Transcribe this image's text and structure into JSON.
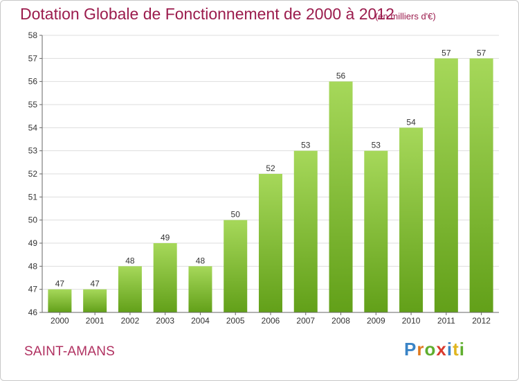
{
  "title": "Dotation Globale de Fonctionnement de 2000 à 2012",
  "subtitle": "(en milliers d'€)",
  "location": "SAINT-AMANS",
  "logo": "Proxiti",
  "colors": {
    "bar_light": "#a6d85a",
    "bar_dark": "#62a019",
    "title": "#9b1c4d",
    "grid": "#d9d9d9",
    "axis": "#666666"
  },
  "chart_data": {
    "type": "bar",
    "title": "Dotation Globale de Fonctionnement de 2000 à 2012",
    "subtitle": "(en milliers d'€)",
    "xlabel": "",
    "ylabel": "",
    "categories": [
      "2000",
      "2001",
      "2002",
      "2003",
      "2004",
      "2005",
      "2006",
      "2007",
      "2008",
      "2009",
      "2010",
      "2011",
      "2012"
    ],
    "values": [
      47,
      47,
      48,
      49,
      48,
      50,
      52,
      53,
      56,
      53,
      54,
      57,
      57
    ],
    "data_labels": [
      "47",
      "47",
      "48",
      "49",
      "48",
      "50",
      "52",
      "53",
      "56",
      "53",
      "54",
      "57",
      "57"
    ],
    "yticks": [
      "46",
      "47",
      "48",
      "49",
      "50",
      "51",
      "52",
      "53",
      "54",
      "55",
      "56",
      "57",
      "58"
    ],
    "ylim": [
      46,
      58
    ],
    "grid": true,
    "legend": "none"
  }
}
